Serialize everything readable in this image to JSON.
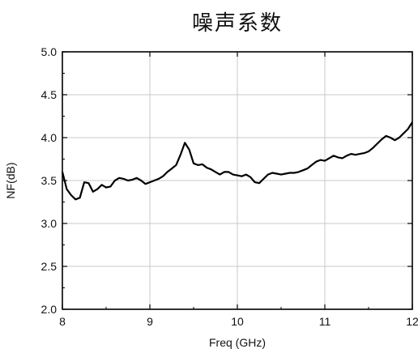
{
  "chart_data": {
    "type": "line",
    "title": "噪声系数",
    "xlabel": "Freq (GHz)",
    "ylabel": "NF(dB)",
    "xlim": [
      8,
      12
    ],
    "ylim": [
      2.0,
      5.0
    ],
    "xticks": [
      "8",
      "9",
      "10",
      "11",
      "12"
    ],
    "yticks": [
      "2.0",
      "2.5",
      "3.0",
      "3.5",
      "4.0",
      "4.5",
      "5.0"
    ],
    "grid": true,
    "line_color": "#000000",
    "series": [
      {
        "x": [
          8.0,
          8.05,
          8.1,
          8.15,
          8.2,
          8.25,
          8.3,
          8.35,
          8.4,
          8.45,
          8.5,
          8.55,
          8.6,
          8.65,
          8.7,
          8.75,
          8.8,
          8.85,
          8.9,
          8.95,
          9.0,
          9.05,
          9.1,
          9.15,
          9.2,
          9.25,
          9.3,
          9.35,
          9.4,
          9.45,
          9.5,
          9.55,
          9.6,
          9.65,
          9.7,
          9.75,
          9.8,
          9.85,
          9.9,
          9.95,
          10.0,
          10.05,
          10.1,
          10.15,
          10.2,
          10.25,
          10.3,
          10.35,
          10.4,
          10.45,
          10.5,
          10.55,
          10.6,
          10.65,
          10.7,
          10.75,
          10.8,
          10.85,
          10.9,
          10.95,
          11.0,
          11.05,
          11.1,
          11.15,
          11.2,
          11.25,
          11.3,
          11.35,
          11.4,
          11.45,
          11.5,
          11.55,
          11.6,
          11.65,
          11.7,
          11.75,
          11.8,
          11.85,
          11.9,
          11.95,
          12.0
        ],
        "y": [
          3.6,
          3.4,
          3.33,
          3.28,
          3.3,
          3.48,
          3.47,
          3.37,
          3.4,
          3.45,
          3.42,
          3.43,
          3.5,
          3.53,
          3.52,
          3.5,
          3.51,
          3.53,
          3.5,
          3.46,
          3.48,
          3.5,
          3.52,
          3.55,
          3.6,
          3.64,
          3.68,
          3.8,
          3.94,
          3.86,
          3.7,
          3.68,
          3.69,
          3.65,
          3.63,
          3.6,
          3.57,
          3.6,
          3.6,
          3.57,
          3.56,
          3.55,
          3.57,
          3.54,
          3.48,
          3.47,
          3.52,
          3.57,
          3.59,
          3.58,
          3.57,
          3.58,
          3.59,
          3.59,
          3.6,
          3.62,
          3.64,
          3.68,
          3.72,
          3.74,
          3.73,
          3.76,
          3.79,
          3.77,
          3.76,
          3.79,
          3.81,
          3.8,
          3.81,
          3.82,
          3.84,
          3.88,
          3.93,
          3.98,
          4.02,
          4.0,
          3.97,
          4.0,
          4.05,
          4.1,
          4.18
        ]
      }
    ]
  }
}
